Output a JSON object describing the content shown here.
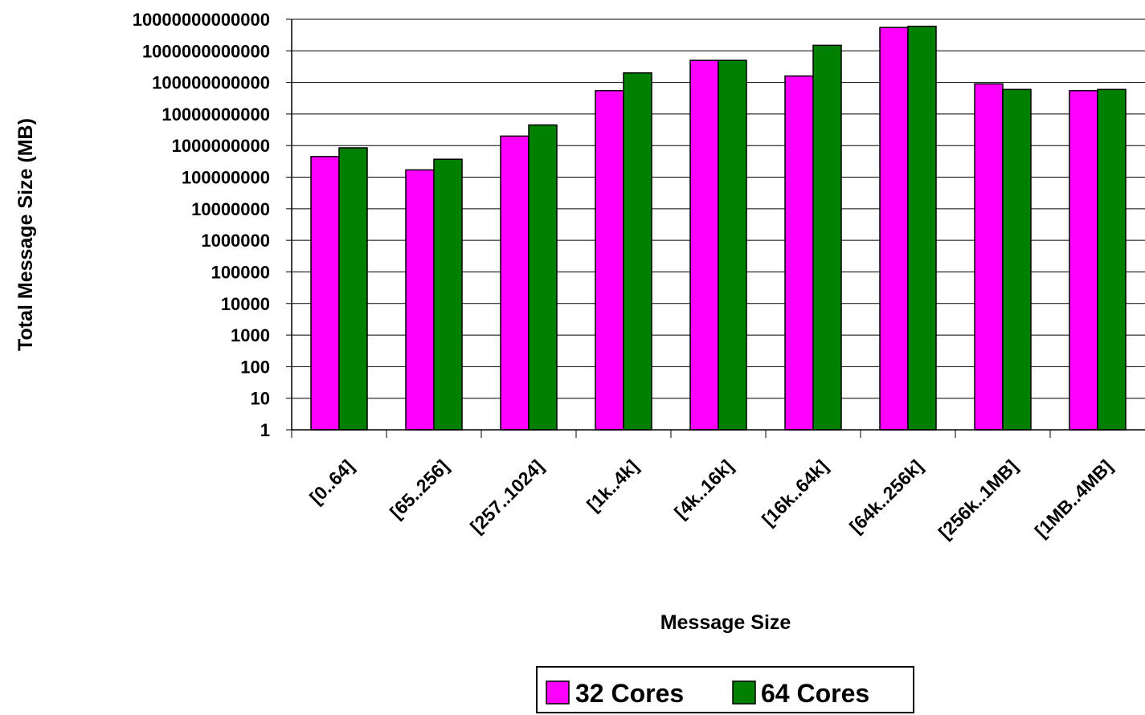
{
  "chart_data": {
    "type": "bar",
    "title": "",
    "xlabel": "Message Size",
    "ylabel": "Total Message Size (MB)",
    "yscale": "log",
    "ylim": [
      1,
      10000000000000
    ],
    "yticks": [
      "1",
      "10",
      "100",
      "1000",
      "10000",
      "100000",
      "1000000",
      "10000000",
      "100000000",
      "1000000000",
      "10000000000",
      "100000000000",
      "1000000000000",
      "10000000000000"
    ],
    "grid": "horizontal",
    "legend_position": "bottom",
    "categories": [
      "[0..64]",
      "[65..256]",
      "[257..1024]",
      "[1k..4k]",
      "[4k..16k]",
      "[16k..64k]",
      "[64k..256k]",
      "[256k..1MB]",
      "[1MB..4MB]"
    ],
    "series": [
      {
        "name": "32 Cores",
        "color": "#ff00ff",
        "values": [
          450000000,
          170000000,
          2000000000,
          55000000000,
          500000000000,
          160000000000,
          5500000000000,
          90000000000,
          55000000000
        ]
      },
      {
        "name": "64 Cores",
        "color": "#008000",
        "values": [
          850000000,
          370000000,
          4500000000,
          200000000000,
          500000000000,
          1500000000000,
          6000000000000,
          60000000000,
          60000000000
        ]
      }
    ]
  }
}
